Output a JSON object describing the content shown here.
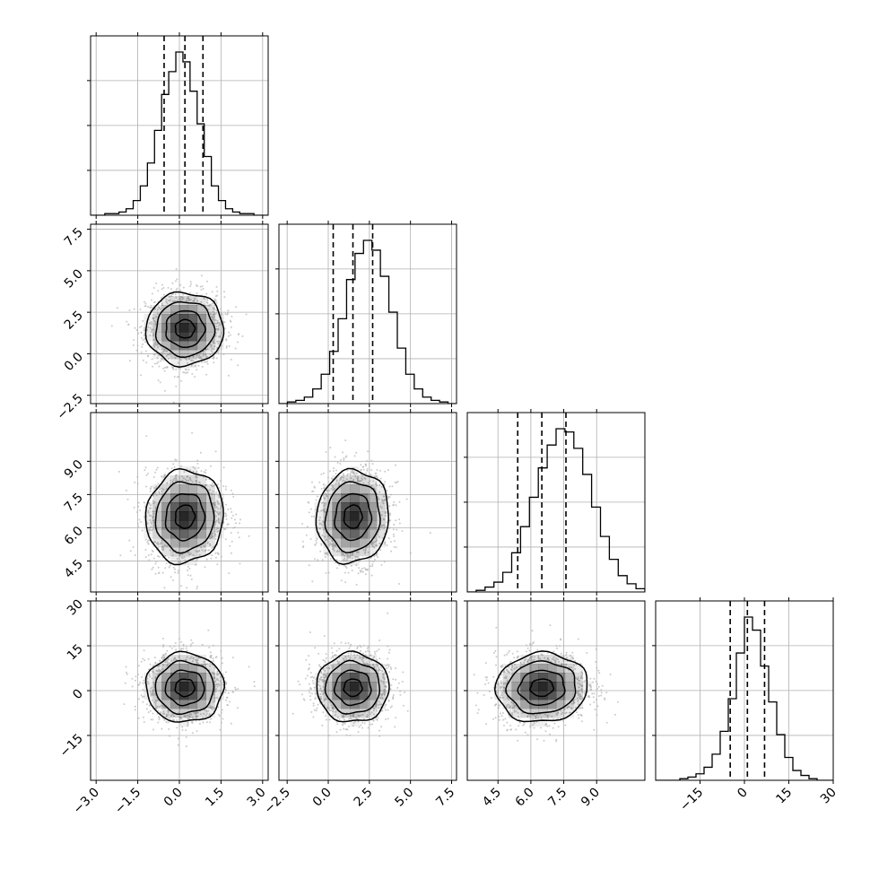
{
  "chart_data": {
    "type": "corner",
    "description_of_panels": "4x4 lower-triangular corner plot: 1D histograms on diagonal, 2D density (grayscale histogram + contour lines + scatter) below diagonal",
    "parameters": [
      {
        "index": 0,
        "range": [
          -3.2,
          3.2
        ],
        "ticks": [
          -3.0,
          -1.5,
          0.0,
          1.5,
          3.0
        ],
        "tick_labels": [
          "−3.0",
          "−1.5",
          "0.0",
          "1.5",
          "3.0"
        ],
        "mean": 0.2,
        "sigma": 0.7,
        "quantiles": [
          -0.55,
          0.2,
          0.85
        ],
        "histogram": [
          0,
          0,
          1,
          1,
          2,
          4,
          9,
          18,
          32,
          52,
          74,
          88,
          100,
          94,
          76,
          56,
          36,
          18,
          9,
          4,
          2,
          1,
          1,
          0,
          0
        ]
      },
      {
        "index": 1,
        "range": [
          -3.0,
          7.8
        ],
        "ticks": [
          -2.5,
          0.0,
          2.5,
          5.0,
          7.5
        ],
        "tick_labels": [
          "−2.5",
          "0.0",
          "2.5",
          "5.0",
          "7.5"
        ],
        "mean": 1.5,
        "sigma": 1.1,
        "quantiles": [
          0.3,
          1.5,
          2.7
        ],
        "histogram": [
          0,
          1,
          2,
          4,
          9,
          18,
          32,
          52,
          76,
          92,
          100,
          94,
          78,
          56,
          34,
          18,
          9,
          4,
          2,
          1,
          0
        ]
      },
      {
        "index": 2,
        "range": [
          3.1,
          11.2
        ],
        "ticks": [
          4.5,
          6.0,
          7.5,
          9.0
        ],
        "tick_labels": [
          "4.5",
          "6.0",
          "7.5",
          "9.0"
        ],
        "mean": 6.5,
        "sigma": 1.05,
        "quantiles": [
          5.4,
          6.5,
          7.6
        ],
        "histogram": [
          0,
          1,
          3,
          6,
          12,
          24,
          40,
          58,
          76,
          90,
          100,
          98,
          88,
          72,
          52,
          34,
          20,
          10,
          5,
          2
        ]
      },
      {
        "index": 3,
        "range": [
          -30.0,
          30.0
        ],
        "ticks": [
          -15,
          0,
          15,
          30
        ],
        "tick_labels": [
          "−15",
          "0",
          "15",
          "30"
        ],
        "mean": 1.0,
        "sigma": 5.8,
        "quantiles": [
          -4.8,
          1.0,
          6.8
        ],
        "histogram": [
          0,
          0,
          0,
          1,
          2,
          4,
          8,
          16,
          30,
          50,
          78,
          100,
          92,
          70,
          48,
          28,
          14,
          6,
          3,
          1,
          0,
          0
        ]
      }
    ],
    "correlations": {
      "1_0": 0.0,
      "2_0": 0.05,
      "2_1": 0.05,
      "3_0": 0.0,
      "3_1": 0.0,
      "3_2": 0.05
    },
    "contour_levels_sigma": [
      0.5,
      1.0,
      1.5,
      2.0
    ],
    "grid": true,
    "colors": {
      "axes": "#000000",
      "grid": "#b0b0b0",
      "scatter": "#b5b5b5",
      "density": "#000000"
    }
  }
}
